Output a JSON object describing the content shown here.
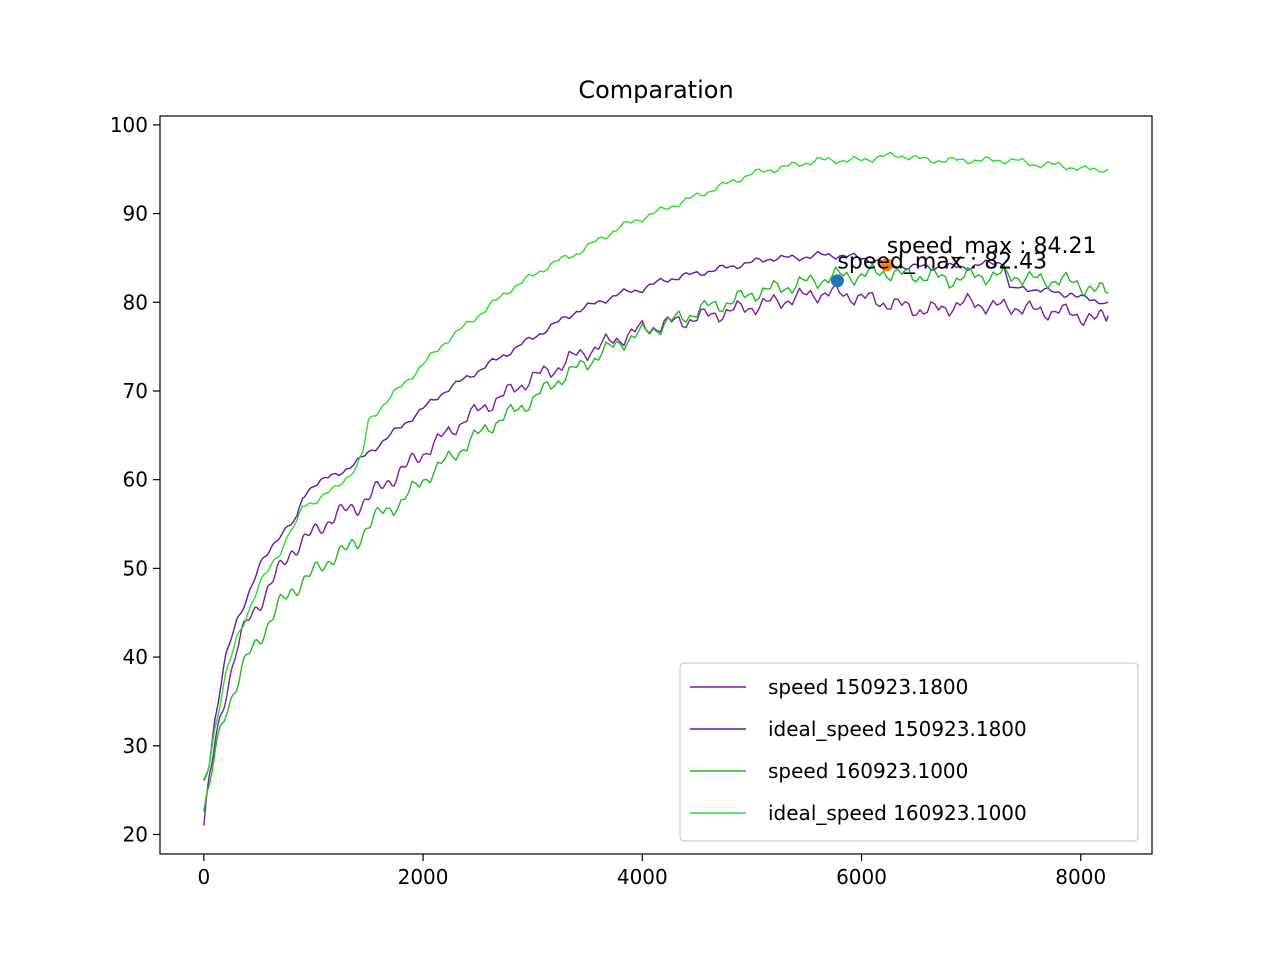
{
  "chart_data": {
    "type": "line",
    "title": "Comparation",
    "xlabel": "",
    "ylabel": "",
    "xlim": [
      -400,
      8650
    ],
    "ylim": [
      17.8,
      101
    ],
    "xticks": [
      0,
      2000,
      4000,
      6000,
      8000
    ],
    "yticks": [
      20,
      30,
      40,
      50,
      60,
      70,
      80,
      90,
      100
    ],
    "grid": false,
    "legend_position": "lower-right",
    "series": [
      {
        "name": "speed 150923.1800",
        "color": "#7b1fa2",
        "x": [
          0,
          50,
          100,
          200,
          300,
          400,
          500,
          600,
          700,
          800,
          900,
          1000,
          1100,
          1200,
          1300,
          1400,
          1500,
          1600,
          1700,
          1800,
          1900,
          2000,
          2200,
          2400,
          2600,
          2800,
          3000,
          3200,
          3400,
          3600,
          3800,
          4000,
          4200,
          4400,
          4600,
          4800,
          5000,
          5200,
          5400,
          5600,
          5800,
          6000,
          6200,
          6400,
          6600,
          6800,
          7000,
          7200,
          7400,
          7600,
          7800,
          8000,
          8150,
          8250
        ],
        "y": [
          21,
          26,
          30,
          36,
          41,
          44,
          46,
          48,
          50,
          52,
          53,
          54,
          55,
          56,
          56.5,
          57,
          58,
          59,
          60,
          61,
          62,
          63,
          65,
          67,
          68.5,
          70,
          71.5,
          72.5,
          74,
          75,
          76,
          77,
          77.5,
          78,
          78.5,
          79,
          79.5,
          80,
          80.5,
          81,
          81,
          80.5,
          80,
          79.5,
          79,
          79.5,
          80,
          79.5,
          79.5,
          79,
          79,
          78.5,
          78,
          78.5
        ]
      },
      {
        "name": "ideal_speed 150923.1800",
        "color": "#5c19b0",
        "x": [
          0,
          50,
          100,
          200,
          300,
          400,
          500,
          600,
          700,
          800,
          850,
          900,
          1000,
          1200,
          1400,
          1600,
          1800,
          2000,
          2200,
          2400,
          2600,
          2800,
          3000,
          3200,
          3400,
          3600,
          3800,
          4000,
          4200,
          4400,
          4600,
          4800,
          5000,
          5200,
          5400,
          5600,
          5800,
          6000,
          6200,
          6400,
          6600,
          6800,
          7000,
          7200,
          7300,
          7350,
          7600,
          7800,
          7900,
          8000,
          8250
        ],
        "y": [
          26,
          28,
          33,
          40,
          44,
          47,
          50,
          52,
          54,
          55,
          55.5,
          58,
          59.5,
          60.5,
          62,
          64,
          66,
          68,
          70,
          71.5,
          73,
          74.5,
          76,
          77.5,
          79,
          80,
          81,
          81.5,
          82.5,
          83,
          83.5,
          84,
          84.5,
          85,
          85,
          85.3,
          85.3,
          85,
          84.5,
          84,
          84,
          84,
          84,
          84.5,
          84.5,
          81.5,
          81.5,
          81,
          81,
          80.5,
          80
        ]
      },
      {
        "name": "speed 160923.1000",
        "color": "#1fbd1f",
        "x": [
          0,
          50,
          100,
          200,
          300,
          400,
          500,
          600,
          700,
          800,
          900,
          1000,
          1100,
          1200,
          1300,
          1400,
          1500,
          1600,
          1800,
          2000,
          2200,
          2400,
          2600,
          2800,
          3000,
          3200,
          3400,
          3600,
          3800,
          4000,
          4200,
          4400,
          4600,
          4800,
          5000,
          5200,
          5400,
          5600,
          5800,
          6000,
          6200,
          6400,
          6600,
          6800,
          7000,
          7200,
          7400,
          7600,
          7800,
          8000,
          8100,
          8250
        ],
        "y": [
          23,
          25,
          29,
          34,
          37,
          40,
          42,
          44,
          46,
          47.5,
          48.5,
          49.5,
          50.5,
          51.5,
          52,
          53,
          55,
          56,
          57.5,
          60,
          62,
          64,
          66,
          67.5,
          69,
          71,
          72.5,
          74,
          75.5,
          76.5,
          77.5,
          78.5,
          79.5,
          80,
          81,
          81.5,
          82,
          82.5,
          83,
          83,
          83.5,
          83,
          83,
          82.5,
          83,
          83,
          83,
          82.5,
          82.5,
          82,
          81.5,
          81
        ]
      },
      {
        "name": "ideal_speed 160923.1000",
        "color": "#28e028",
        "x": [
          0,
          50,
          100,
          200,
          300,
          400,
          500,
          600,
          700,
          800,
          850,
          900,
          1000,
          1200,
          1400,
          1450,
          1500,
          1600,
          1800,
          2000,
          2200,
          2400,
          2600,
          2800,
          3000,
          3200,
          3400,
          3600,
          3800,
          4000,
          4200,
          4400,
          4600,
          4800,
          5000,
          5200,
          5400,
          5600,
          5800,
          6000,
          6200,
          6400,
          6600,
          6800,
          7000,
          7200,
          7400,
          7600,
          7800,
          8000,
          8250
        ],
        "y": [
          26,
          28,
          32,
          38,
          42,
          45,
          48,
          50,
          52,
          54.5,
          55,
          57,
          57.5,
          59,
          61.5,
          63,
          66.5,
          68,
          70.5,
          73,
          75.5,
          77.5,
          79.5,
          81.5,
          83,
          84.5,
          85.5,
          87,
          88.5,
          89.5,
          90.5,
          91.5,
          92.5,
          93.5,
          94.5,
          95,
          95.5,
          96,
          96,
          96,
          96.5,
          96.5,
          96,
          96,
          96,
          96,
          96,
          95.5,
          95.5,
          95,
          95
        ]
      }
    ],
    "markers": [
      {
        "x": 5780,
        "y": 82.43,
        "color": "#1f77b4"
      },
      {
        "x": 6230,
        "y": 84.21,
        "color": "#ff7f0e"
      }
    ],
    "annotations": [
      {
        "text": "speed_max : 82.43",
        "x": 5780,
        "y": 82.43
      },
      {
        "text": "speed_max : 84.21",
        "x": 6230,
        "y": 84.21
      }
    ]
  }
}
